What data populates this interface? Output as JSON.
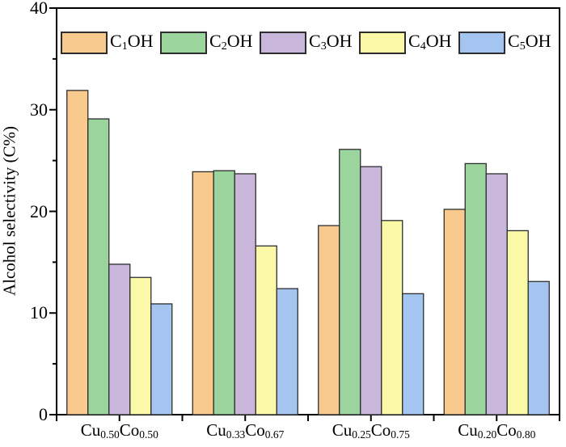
{
  "chart_data": {
    "type": "bar",
    "title": "",
    "xlabel": "",
    "ylabel": "Alcohol selectivity (C%)",
    "ylim": [
      0,
      40
    ],
    "yticks": [
      0,
      10,
      20,
      30,
      40
    ],
    "minor_yticks": [
      5,
      15,
      25,
      35
    ],
    "grid": false,
    "legend_position": "top-inside-row",
    "axis_color": "#000000",
    "bar_border_color": "#2d2d2d",
    "categories": [
      {
        "name": "Cu0.50Co0.50",
        "parts": [
          [
            "Cu",
            false
          ],
          [
            "0.50",
            true
          ],
          [
            "Co",
            false
          ],
          [
            "0.50",
            true
          ]
        ]
      },
      {
        "name": "Cu0.33Co0.67",
        "parts": [
          [
            "Cu",
            false
          ],
          [
            "0.33",
            true
          ],
          [
            "Co",
            false
          ],
          [
            "0.67",
            true
          ]
        ]
      },
      {
        "name": "Cu0.25Co0.75",
        "parts": [
          [
            "Cu",
            false
          ],
          [
            "0.25",
            true
          ],
          [
            "Co",
            false
          ],
          [
            "0.75",
            true
          ]
        ]
      },
      {
        "name": "Cu0.20Co0.80",
        "parts": [
          [
            "Cu",
            false
          ],
          [
            "0.20",
            true
          ],
          [
            "Co",
            false
          ],
          [
            "0.80",
            true
          ]
        ]
      }
    ],
    "series": [
      {
        "name": "C1OH",
        "parts": [
          [
            "C",
            false
          ],
          [
            "1",
            true
          ],
          [
            "OH",
            false
          ]
        ],
        "color": "#F8CA8E",
        "values": [
          31.9,
          23.9,
          18.6,
          20.2
        ]
      },
      {
        "name": "C2OH",
        "parts": [
          [
            "C",
            false
          ],
          [
            "2",
            true
          ],
          [
            "OH",
            false
          ]
        ],
        "color": "#9BD49D",
        "values": [
          29.1,
          24.0,
          26.1,
          24.7
        ]
      },
      {
        "name": "C3OH",
        "parts": [
          [
            "C",
            false
          ],
          [
            "3",
            true
          ],
          [
            "OH",
            false
          ]
        ],
        "color": "#C9B7DB",
        "values": [
          14.8,
          23.7,
          24.4,
          23.7
        ]
      },
      {
        "name": "C4OH",
        "parts": [
          [
            "C",
            false
          ],
          [
            "4",
            true
          ],
          [
            "OH",
            false
          ]
        ],
        "color": "#FBF9A7",
        "values": [
          13.5,
          16.6,
          19.1,
          18.1
        ]
      },
      {
        "name": "C5OH",
        "parts": [
          [
            "C",
            false
          ],
          [
            "5",
            true
          ],
          [
            "OH",
            false
          ]
        ],
        "color": "#A5C5F1",
        "values": [
          10.9,
          12.4,
          11.9,
          13.1
        ]
      }
    ]
  }
}
